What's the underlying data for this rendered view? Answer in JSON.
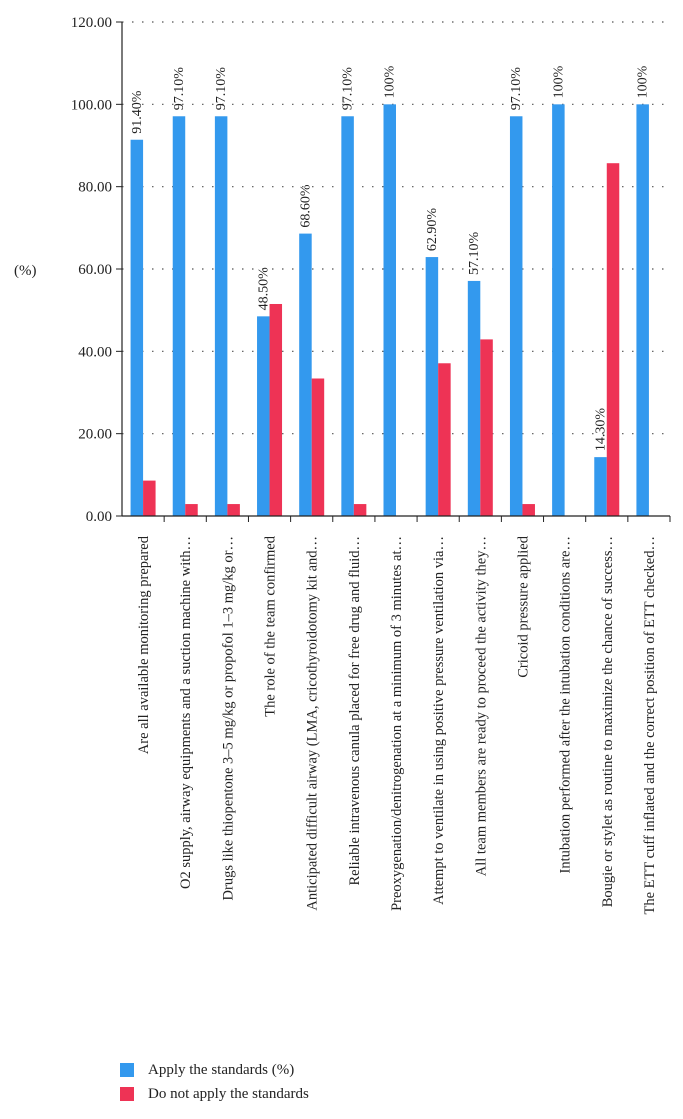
{
  "chart_data": {
    "type": "bar",
    "ylabel": "(%)",
    "ylim": [
      0,
      120
    ],
    "yticks": [
      "0.00",
      "20.00",
      "40.00",
      "60.00",
      "80.00",
      "100.00",
      "120.00"
    ],
    "grid": "horizontal dotted",
    "legend_position": "bottom-left",
    "categories": [
      "Are all available monitoring prepared",
      "O2 supply, airway equipments and a suction machine with…",
      "Drugs like thiopentone 3–5 mg/kg or propofol 1–3 mg/kg or…",
      "The role of the team confirmed",
      "Anticipated difficult airway (LMA, cricothyroidotomy kit and…",
      "Reliable intravenous canula placed for free drug and fluid…",
      "Preoxygenation/denitrogenation at a minimum of 3 minutes at…",
      "Attempt to ventilate in using positive pressure ventilation via…",
      "All team members are ready to proceed the activity they…",
      "Cricoid pressure applied",
      "Intubation performed after the intubation conditions are…",
      "Bougie or stylet as routine to maximize the chance of success…",
      "The ETT cuff inflated and the correct position of ETT checked…"
    ],
    "series": [
      {
        "name": "Apply the standards (%)",
        "color": "#3399ee",
        "values": [
          91.4,
          97.1,
          97.1,
          48.5,
          68.6,
          97.1,
          100,
          62.9,
          57.1,
          97.1,
          100,
          14.3,
          100
        ],
        "labels": [
          "91.40%",
          "97.10%",
          "97.10%",
          "48.50%",
          "68.60%",
          "97.10%",
          "100%",
          "62.90%",
          "57.10%",
          "97.10%",
          "100%",
          "14.30%",
          "100%"
        ]
      },
      {
        "name": "Do not apply the standards",
        "color": "#ee3355",
        "values": [
          8.6,
          2.9,
          2.9,
          51.5,
          33.4,
          2.9,
          0,
          37.1,
          42.9,
          2.9,
          0,
          85.7,
          0
        ]
      }
    ]
  }
}
